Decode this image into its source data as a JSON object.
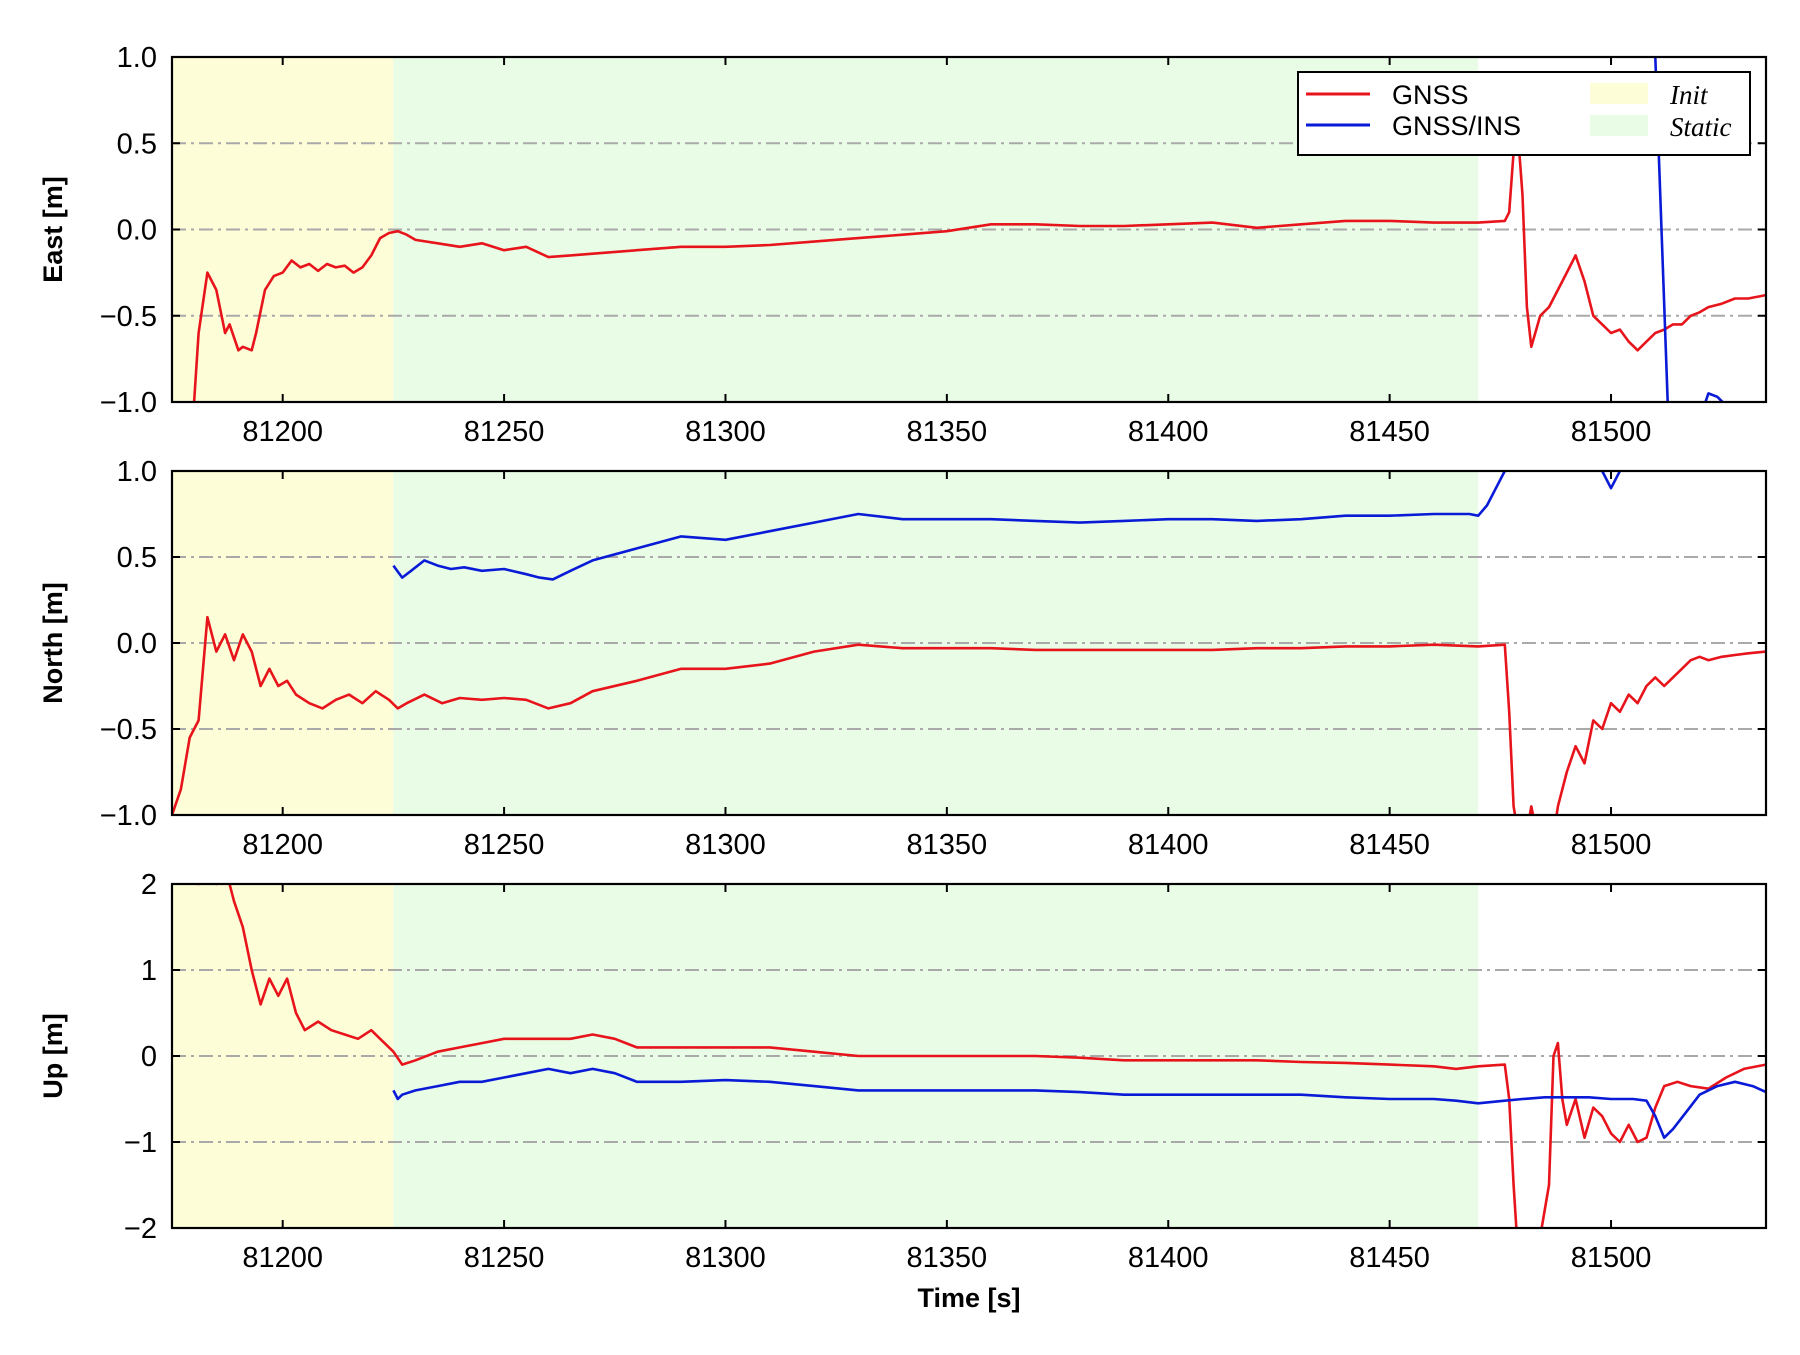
{
  "colors": {
    "gnss": "#e8141b",
    "gnss_ins": "#0a1bd8",
    "init_band": "#fdfdd8",
    "static_band": "#e9fde6",
    "grid": "#a9a9a9"
  },
  "legend": {
    "gnss": "GNSS",
    "gnss_ins": "GNSS/INS",
    "init": "Init",
    "static": "Static",
    "placement": "top-right"
  },
  "xlabel": "Time [s]",
  "chart_data": [
    {
      "type": "line",
      "ylabel": "East [m]",
      "xlim": [
        81175,
        81535
      ],
      "ylim": [
        -1.0,
        1.0
      ],
      "xticks": [
        81200,
        81250,
        81300,
        81350,
        81400,
        81450,
        81500
      ],
      "xtick_labels": [
        "81200",
        "81250",
        "81300",
        "81350",
        "81400",
        "81450",
        "81500"
      ],
      "yticks": [
        -1.0,
        -0.5,
        0.0,
        0.5,
        1.0
      ],
      "ytick_labels": [
        "−1.0",
        "−0.5",
        "0.0",
        "0.5",
        "1.0"
      ],
      "grid": "horizontal dash-dot",
      "legend": true,
      "spans": [
        {
          "label": "Init",
          "x0": 81175,
          "x1": 81225
        },
        {
          "label": "Static",
          "x0": 81225,
          "x1": 81470
        }
      ],
      "series": [
        {
          "name": "GNSS",
          "x": [
            81180,
            81181,
            81183,
            81185,
            81187,
            81188,
            81190,
            81191,
            81193,
            81194,
            81196,
            81198,
            81200,
            81202,
            81204,
            81206,
            81208,
            81210,
            81212,
            81214,
            81216,
            81218,
            81220,
            81222,
            81224,
            81226,
            81228,
            81230,
            81235,
            81240,
            81245,
            81250,
            81255,
            81260,
            81265,
            81270,
            81280,
            81290,
            81300,
            81310,
            81320,
            81330,
            81340,
            81350,
            81360,
            81370,
            81380,
            81390,
            81400,
            81410,
            81420,
            81430,
            81440,
            81450,
            81460,
            81470,
            81476,
            81477,
            81478,
            81479,
            81480,
            81481,
            81482,
            81484,
            81486,
            81488,
            81490,
            81492,
            81494,
            81496,
            81498,
            81500,
            81502,
            81504,
            81506,
            81508,
            81510,
            81512,
            81514,
            81516,
            81518,
            81520,
            81522,
            81525,
            81528,
            81531,
            81535
          ],
          "y": [
            -1.0,
            -0.6,
            -0.25,
            -0.35,
            -0.6,
            -0.55,
            -0.7,
            -0.68,
            -0.7,
            -0.6,
            -0.35,
            -0.27,
            -0.25,
            -0.18,
            -0.22,
            -0.2,
            -0.24,
            -0.2,
            -0.22,
            -0.21,
            -0.25,
            -0.22,
            -0.15,
            -0.05,
            -0.02,
            -0.01,
            -0.03,
            -0.06,
            -0.08,
            -0.1,
            -0.08,
            -0.12,
            -0.1,
            -0.16,
            -0.15,
            -0.14,
            -0.12,
            -0.1,
            -0.1,
            -0.09,
            -0.07,
            -0.05,
            -0.03,
            -0.01,
            0.03,
            0.03,
            0.02,
            0.02,
            0.03,
            0.04,
            0.01,
            0.03,
            0.05,
            0.05,
            0.04,
            0.04,
            0.05,
            0.1,
            0.45,
            0.55,
            0.2,
            -0.45,
            -0.68,
            -0.5,
            -0.45,
            -0.35,
            -0.25,
            -0.15,
            -0.3,
            -0.5,
            -0.55,
            -0.6,
            -0.58,
            -0.65,
            -0.7,
            -0.65,
            -0.6,
            -0.58,
            -0.55,
            -0.55,
            -0.5,
            -0.48,
            -0.45,
            -0.43,
            -0.4,
            -0.4,
            -0.38
          ]
        },
        {
          "name": "GNSS/INS",
          "x": [
            81510,
            81511.4,
            81512.8,
            81514,
            81520,
            81522,
            81524,
            81526
          ],
          "y": [
            1.0,
            0.0,
            -1.0,
            -1.3,
            -1.1,
            -0.95,
            -0.97,
            -1.02
          ]
        }
      ]
    },
    {
      "type": "line",
      "ylabel": "North [m]",
      "xlim": [
        81175,
        81535
      ],
      "ylim": [
        -1.0,
        1.0
      ],
      "xticks": [
        81200,
        81250,
        81300,
        81350,
        81400,
        81450,
        81500
      ],
      "xtick_labels": [
        "81200",
        "81250",
        "81300",
        "81350",
        "81400",
        "81450",
        "81500"
      ],
      "yticks": [
        -1.0,
        -0.5,
        0.0,
        0.5,
        1.0
      ],
      "ytick_labels": [
        "−1.0",
        "−0.5",
        "0.0",
        "0.5",
        "1.0"
      ],
      "grid": "horizontal dash-dot",
      "legend": false,
      "spans": [
        {
          "label": "Init",
          "x0": 81175,
          "x1": 81225
        },
        {
          "label": "Static",
          "x0": 81225,
          "x1": 81470
        }
      ],
      "series": [
        {
          "name": "GNSS",
          "x": [
            81175,
            81177,
            81179,
            81181,
            81183,
            81185,
            81187,
            81189,
            81191,
            81193,
            81195,
            81197,
            81199,
            81201,
            81203,
            81206,
            81209,
            81212,
            81215,
            81218,
            81221,
            81224,
            81226,
            81228,
            81232,
            81236,
            81240,
            81245,
            81250,
            81255,
            81260,
            81265,
            81270,
            81280,
            81290,
            81300,
            81310,
            81320,
            81330,
            81340,
            81350,
            81360,
            81370,
            81380,
            81390,
            81400,
            81410,
            81420,
            81430,
            81440,
            81450,
            81460,
            81470,
            81476,
            81477,
            81478,
            81480,
            81482,
            81484,
            81486,
            81488,
            81490,
            81492,
            81494,
            81496,
            81498,
            81500,
            81502,
            81504,
            81506,
            81508,
            81510,
            81512,
            81514,
            81516,
            81518,
            81520,
            81522,
            81525,
            81528,
            81531,
            81535
          ],
          "y": [
            -1.0,
            -0.85,
            -0.55,
            -0.45,
            0.15,
            -0.05,
            0.05,
            -0.1,
            0.05,
            -0.05,
            -0.25,
            -0.15,
            -0.25,
            -0.22,
            -0.3,
            -0.35,
            -0.38,
            -0.33,
            -0.3,
            -0.35,
            -0.28,
            -0.33,
            -0.38,
            -0.35,
            -0.3,
            -0.35,
            -0.32,
            -0.33,
            -0.32,
            -0.33,
            -0.38,
            -0.35,
            -0.28,
            -0.22,
            -0.15,
            -0.15,
            -0.12,
            -0.05,
            -0.01,
            -0.03,
            -0.03,
            -0.03,
            -0.04,
            -0.04,
            -0.04,
            -0.04,
            -0.04,
            -0.03,
            -0.03,
            -0.02,
            -0.02,
            -0.01,
            -0.02,
            -0.01,
            -0.4,
            -0.95,
            -1.25,
            -0.95,
            -1.2,
            -1.3,
            -0.95,
            -0.75,
            -0.6,
            -0.7,
            -0.45,
            -0.5,
            -0.35,
            -0.4,
            -0.3,
            -0.35,
            -0.25,
            -0.2,
            -0.25,
            -0.2,
            -0.15,
            -0.1,
            -0.08,
            -0.1,
            -0.08,
            -0.07,
            -0.06,
            -0.05
          ]
        },
        {
          "name": "GNSS/INS",
          "x": [
            81225,
            81227,
            81229,
            81232,
            81235,
            81238,
            81241,
            81245,
            81250,
            81255,
            81258,
            81261,
            81265,
            81270,
            81280,
            81290,
            81300,
            81310,
            81320,
            81330,
            81340,
            81350,
            81360,
            81370,
            81380,
            81390,
            81400,
            81410,
            81420,
            81430,
            81440,
            81450,
            81460,
            81468,
            81470,
            81472,
            81474,
            81476
          ],
          "y": [
            0.45,
            0.38,
            0.42,
            0.48,
            0.45,
            0.43,
            0.44,
            0.42,
            0.43,
            0.4,
            0.38,
            0.37,
            0.42,
            0.48,
            0.55,
            0.62,
            0.6,
            0.65,
            0.7,
            0.75,
            0.72,
            0.72,
            0.72,
            0.71,
            0.7,
            0.71,
            0.72,
            0.72,
            0.71,
            0.72,
            0.74,
            0.74,
            0.75,
            0.75,
            0.74,
            0.8,
            0.9,
            1.0
          ]
        },
        {
          "name": "GNSS/INS",
          "x": [
            81498,
            81500,
            81502
          ],
          "y": [
            1.0,
            0.9,
            1.0
          ]
        }
      ]
    },
    {
      "type": "line",
      "ylabel": "Up [m]",
      "xlim": [
        81175,
        81535
      ],
      "ylim": [
        -2,
        2
      ],
      "xticks": [
        81200,
        81250,
        81300,
        81350,
        81400,
        81450,
        81500
      ],
      "xtick_labels": [
        "81200",
        "81250",
        "81300",
        "81350",
        "81400",
        "81450",
        "81500"
      ],
      "yticks": [
        -2,
        -1,
        0,
        1,
        2
      ],
      "ytick_labels": [
        "−2",
        "−1",
        "0",
        "1",
        "2"
      ],
      "grid": "horizontal dash-dot",
      "legend": false,
      "spans": [
        {
          "label": "Init",
          "x0": 81175,
          "x1": 81225
        },
        {
          "label": "Static",
          "x0": 81225,
          "x1": 81470
        }
      ],
      "series": [
        {
          "name": "GNSS",
          "x": [
            81175,
            81177,
            81179,
            81181,
            81183,
            81185,
            81187,
            81189,
            81191,
            81193,
            81195,
            81197,
            81199,
            81201,
            81203,
            81205,
            81208,
            81211,
            81214,
            81217,
            81220,
            81223,
            81225,
            81227,
            81230,
            81235,
            81240,
            81245,
            81250,
            81255,
            81260,
            81265,
            81270,
            81275,
            81280,
            81290,
            81300,
            81310,
            81320,
            81330,
            81340,
            81350,
            81360,
            81370,
            81380,
            81390,
            81400,
            81410,
            81420,
            81430,
            81440,
            81450,
            81460,
            81465,
            81470,
            81476,
            81477,
            81478,
            81479,
            81480,
            81482,
            81484,
            81486,
            81487,
            81488,
            81489,
            81490,
            81492,
            81494,
            81496,
            81498,
            81500,
            81502,
            81504,
            81506,
            81508,
            81510,
            81512,
            81515,
            81518,
            81522,
            81526,
            81530,
            81535
          ],
          "y": [
            2.3,
            2.1,
            2.2,
            2.0,
            2.3,
            2.0,
            2.2,
            1.8,
            1.5,
            1.0,
            0.6,
            0.9,
            0.7,
            0.9,
            0.5,
            0.3,
            0.4,
            0.3,
            0.25,
            0.2,
            0.3,
            0.15,
            0.05,
            -0.1,
            -0.05,
            0.05,
            0.1,
            0.15,
            0.2,
            0.2,
            0.2,
            0.2,
            0.25,
            0.2,
            0.1,
            0.1,
            0.1,
            0.1,
            0.05,
            0.0,
            0.0,
            0.0,
            0.0,
            0.0,
            -0.02,
            -0.05,
            -0.05,
            -0.05,
            -0.05,
            -0.07,
            -0.08,
            -0.1,
            -0.12,
            -0.15,
            -0.12,
            -0.1,
            -0.5,
            -1.5,
            -2.3,
            -2.5,
            -2.3,
            -2.1,
            -1.5,
            0.0,
            0.15,
            -0.5,
            -0.8,
            -0.5,
            -0.95,
            -0.6,
            -0.7,
            -0.9,
            -1.0,
            -0.8,
            -1.0,
            -0.95,
            -0.6,
            -0.35,
            -0.3,
            -0.35,
            -0.38,
            -0.25,
            -0.15,
            -0.1
          ]
        },
        {
          "name": "GNSS/INS",
          "x": [
            81225,
            81226,
            81227,
            81230,
            81235,
            81240,
            81245,
            81250,
            81255,
            81260,
            81265,
            81270,
            81275,
            81280,
            81290,
            81300,
            81310,
            81320,
            81330,
            81340,
            81350,
            81360,
            81370,
            81380,
            81390,
            81400,
            81410,
            81420,
            81430,
            81440,
            81450,
            81460,
            81465,
            81470,
            81476,
            81480,
            81485,
            81490,
            81495,
            81500,
            81505,
            81508,
            81510,
            81512,
            81514,
            81517,
            81520,
            81524,
            81528,
            81532,
            81535
          ],
          "y": [
            -0.4,
            -0.5,
            -0.45,
            -0.4,
            -0.35,
            -0.3,
            -0.3,
            -0.25,
            -0.2,
            -0.15,
            -0.2,
            -0.15,
            -0.2,
            -0.3,
            -0.3,
            -0.28,
            -0.3,
            -0.35,
            -0.4,
            -0.4,
            -0.4,
            -0.4,
            -0.4,
            -0.42,
            -0.45,
            -0.45,
            -0.45,
            -0.45,
            -0.45,
            -0.48,
            -0.5,
            -0.5,
            -0.52,
            -0.55,
            -0.52,
            -0.5,
            -0.48,
            -0.48,
            -0.48,
            -0.5,
            -0.5,
            -0.52,
            -0.7,
            -0.95,
            -0.85,
            -0.65,
            -0.45,
            -0.35,
            -0.3,
            -0.35,
            -0.42
          ]
        }
      ]
    }
  ]
}
